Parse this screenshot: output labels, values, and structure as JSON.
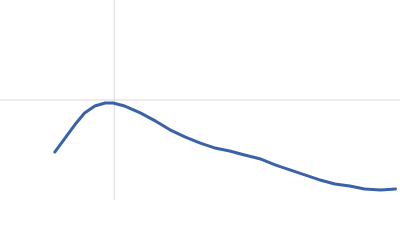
{
  "chart_data": {
    "type": "line",
    "x": [
      0.48,
      0.57,
      0.66,
      0.74,
      0.83,
      0.92,
      0.99,
      1.09,
      1.23,
      1.36,
      1.49,
      1.62,
      1.75,
      1.88,
      2.01,
      2.14,
      2.28,
      2.41,
      2.54,
      2.67,
      2.8,
      2.93,
      3.06,
      3.19,
      3.33,
      3.46
    ],
    "series": [
      {
        "color": "#3a62a8",
        "values": [
          0.48,
          0.62,
          0.76,
          0.87,
          0.94,
          0.97,
          0.97,
          0.94,
          0.87,
          0.79,
          0.7,
          0.63,
          0.57,
          0.52,
          0.49,
          0.45,
          0.41,
          0.35,
          0.3,
          0.25,
          0.2,
          0.16,
          0.14,
          0.11,
          0.1,
          0.11
        ]
      }
    ],
    "xlim": [
      0,
      3.5
    ],
    "ylim": [
      0,
      2
    ],
    "xticks": [
      1
    ],
    "yticks": [
      1
    ],
    "grid": true
  }
}
